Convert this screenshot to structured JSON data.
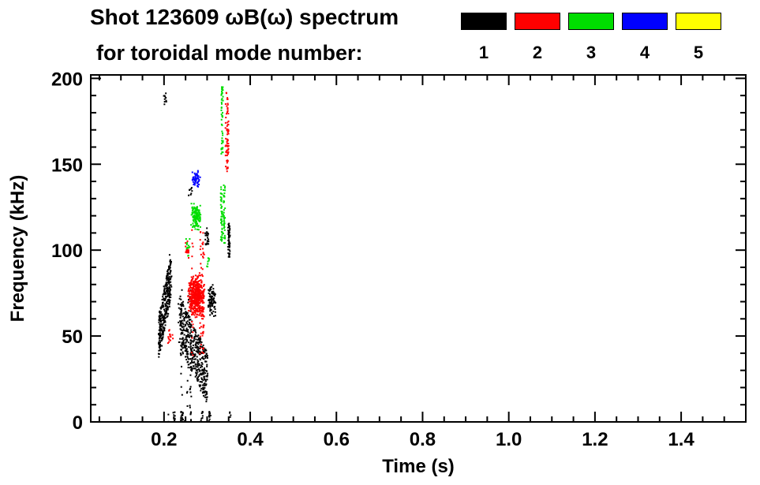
{
  "header": {
    "line1": "Shot 123609 ωB(ω) spectrum",
    "line2": "for toroidal mode number:"
  },
  "legend": {
    "items": [
      {
        "label": "1",
        "color": "#000000"
      },
      {
        "label": "2",
        "color": "#ff0000"
      },
      {
        "label": "3",
        "color": "#00dd00"
      },
      {
        "label": "4",
        "color": "#0000ff"
      },
      {
        "label": "5",
        "color": "#ffff00"
      }
    ]
  },
  "chart_data": {
    "type": "scatter",
    "title": "Shot 123609 ωB(ω) spectrum for toroidal mode number: 1 2 3 4 5",
    "xlabel": "Time (s)",
    "ylabel": "Frequency (kHz)",
    "xlim": [
      0.03,
      1.55
    ],
    "ylim": [
      0,
      202
    ],
    "grid": false,
    "legend_position": "top-right",
    "xticks": {
      "values": [
        0.2,
        0.4,
        0.6,
        0.8,
        1.0,
        1.2,
        1.4
      ],
      "labels": [
        "0.2",
        "0.4",
        "0.6",
        "0.8",
        "1.0",
        "1.2",
        "1.4"
      ],
      "minor_step": 0.05
    },
    "yticks": {
      "values": [
        0,
        50,
        100,
        150,
        200
      ],
      "labels": [
        "0",
        "50",
        "100",
        "150",
        "200"
      ],
      "minor_step": 10
    },
    "series": [
      {
        "name": "mode n=1",
        "color": "#000000",
        "clusters": [
          {
            "mode": "diag",
            "t": [
              0.188,
              0.216
            ],
            "f": [
              50,
              86
            ],
            "jitter": 13,
            "n": 320
          },
          {
            "mode": "diag",
            "t": [
              0.234,
              0.3
            ],
            "f": [
              60,
              26
            ],
            "jitter": 15,
            "n": 430
          },
          {
            "mode": "vstreaks",
            "t": [
              0.238,
              0.262
            ],
            "f": [
              5,
              78
            ],
            "streaks": 3,
            "n": 70
          },
          {
            "mode": "blob",
            "t": [
              0.3,
              0.322
            ],
            "f": [
              60,
              82
            ],
            "n": 90
          },
          {
            "mode": "vstreaks",
            "t": [
              0.344,
              0.358
            ],
            "f": [
              95,
              116
            ],
            "streaks": 2,
            "n": 55
          },
          {
            "mode": "blob",
            "t": [
              0.293,
              0.306
            ],
            "f": [
              100,
              113
            ],
            "n": 25
          },
          {
            "mode": "blob",
            "t": [
              0.196,
              0.207
            ],
            "f": [
              182,
              193
            ],
            "n": 10
          },
          {
            "mode": "vstreaks",
            "t": [
              0.19,
              0.41
            ],
            "f": [
              0,
              6
            ],
            "streaks": 9,
            "n": 60
          },
          {
            "mode": "blob",
            "t": [
              0.255,
              0.268
            ],
            "f": [
              128,
              140
            ],
            "n": 8
          }
        ]
      },
      {
        "name": "mode n=2",
        "color": "#ff0000",
        "clusters": [
          {
            "mode": "blob",
            "t": [
              0.254,
              0.296
            ],
            "f": [
              60,
              87
            ],
            "n": 460
          },
          {
            "mode": "vstreaks",
            "t": [
              0.263,
              0.292
            ],
            "f": [
              38,
              112
            ],
            "streaks": 4,
            "n": 85
          },
          {
            "mode": "vstreaks",
            "t": [
              0.337,
              0.353
            ],
            "f": [
              145,
              192
            ],
            "streaks": 3,
            "n": 70
          },
          {
            "mode": "blob",
            "t": [
              0.205,
              0.222
            ],
            "f": [
              42,
              56
            ],
            "n": 14
          },
          {
            "mode": "blob",
            "t": [
              0.247,
              0.259
            ],
            "f": [
              94,
              107
            ],
            "n": 16
          }
        ]
      },
      {
        "name": "mode n=3",
        "color": "#00dd00",
        "clusters": [
          {
            "mode": "blob",
            "t": [
              0.262,
              0.286
            ],
            "f": [
              111,
              128
            ],
            "n": 130
          },
          {
            "mode": "vstreaks",
            "t": [
              0.325,
              0.343
            ],
            "f": [
              104,
              138
            ],
            "streaks": 2,
            "n": 85
          },
          {
            "mode": "vstreaks",
            "t": [
              0.327,
              0.341
            ],
            "f": [
              156,
              196
            ],
            "streaks": 2,
            "n": 50
          },
          {
            "mode": "blob",
            "t": [
              0.247,
              0.262
            ],
            "f": [
              95,
              108
            ],
            "n": 12
          },
          {
            "mode": "blob",
            "t": [
              0.296,
              0.308
            ],
            "f": [
              88,
              98
            ],
            "n": 8
          }
        ]
      },
      {
        "name": "mode n=4",
        "color": "#0000ff",
        "clusters": [
          {
            "mode": "blob",
            "t": [
              0.265,
              0.285
            ],
            "f": [
              136,
              147
            ],
            "n": 55
          }
        ]
      },
      {
        "name": "mode n=5",
        "color": "#ffff00",
        "clusters": []
      }
    ]
  }
}
